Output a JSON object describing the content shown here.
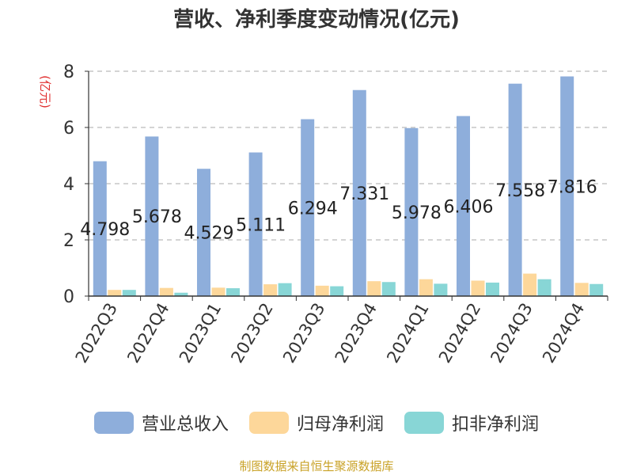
{
  "chart_data": {
    "type": "bar",
    "title": "营收、净利季度变动情况(亿元)",
    "ylabel": "(亿元)",
    "xlabel": "",
    "ylim": [
      0,
      8
    ],
    "yticks": [
      0,
      2,
      4,
      6,
      8
    ],
    "grid": true,
    "legend_position": "bottom",
    "categories": [
      "2022Q3",
      "2022Q4",
      "2023Q1",
      "2023Q2",
      "2023Q3",
      "2023Q4",
      "2024Q1",
      "2024Q2",
      "2024Q3",
      "2024Q4"
    ],
    "series": [
      {
        "name": "营业总收入",
        "color": "#8eaedb",
        "values": [
          4.798,
          5.678,
          4.529,
          5.111,
          6.294,
          7.331,
          5.978,
          6.406,
          7.558,
          7.816
        ],
        "data_labels": [
          "4.798",
          "5.678",
          "4.529",
          "5.111",
          "6.294",
          "7.331",
          "5.978",
          "6.406",
          "7.558",
          "7.816"
        ]
      },
      {
        "name": "归母净利润",
        "color": "#fdd79a",
        "values": [
          0.22,
          0.29,
          0.3,
          0.42,
          0.37,
          0.53,
          0.6,
          0.55,
          0.8,
          0.47
        ]
      },
      {
        "name": "扣非净利润",
        "color": "#88d6d6",
        "values": [
          0.22,
          0.12,
          0.28,
          0.46,
          0.35,
          0.5,
          0.44,
          0.48,
          0.6,
          0.43
        ]
      }
    ]
  },
  "source_note": "制图数据来自恒生聚源数据库"
}
